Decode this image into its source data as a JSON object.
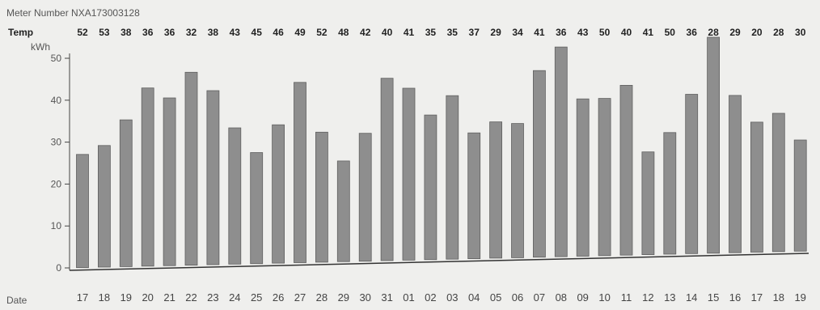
{
  "meter_label": "Meter Number NXA173003128",
  "temp_label": "Temp",
  "date_label": "Date",
  "chart_data": {
    "type": "bar",
    "ylabel": "kWh",
    "ylim": [
      0,
      50
    ],
    "yticks": [
      "0",
      "10",
      "20",
      "30",
      "40",
      "50"
    ],
    "grid": false,
    "categories": [
      "17",
      "18",
      "19",
      "20",
      "21",
      "22",
      "23",
      "24",
      "25",
      "26",
      "27",
      "28",
      "29",
      "30",
      "31",
      "01",
      "02",
      "03",
      "04",
      "05",
      "06",
      "07",
      "08",
      "09",
      "10",
      "11",
      "12",
      "13",
      "14",
      "15",
      "16",
      "17",
      "18",
      "19"
    ],
    "values": [
      27,
      29,
      35,
      42.5,
      40,
      46,
      41.5,
      32.5,
      26.5,
      33,
      43,
      31,
      24,
      30.5,
      43.5,
      41,
      34.5,
      39,
      30,
      32.5,
      32,
      44.5,
      50,
      37.5,
      37.5,
      40.5,
      24.5,
      29,
      38,
      51.5,
      37.5,
      31,
      33,
      26.5
    ],
    "temps": [
      "52",
      "53",
      "38",
      "36",
      "36",
      "32",
      "38",
      "43",
      "45",
      "46",
      "49",
      "52",
      "48",
      "42",
      "40",
      "41",
      "35",
      "35",
      "37",
      "29",
      "34",
      "41",
      "36",
      "43",
      "50",
      "40",
      "41",
      "50",
      "36",
      "28",
      "29",
      "20",
      "28",
      "30"
    ],
    "bar_color": "#8e8e8e",
    "background": "#efefed"
  }
}
